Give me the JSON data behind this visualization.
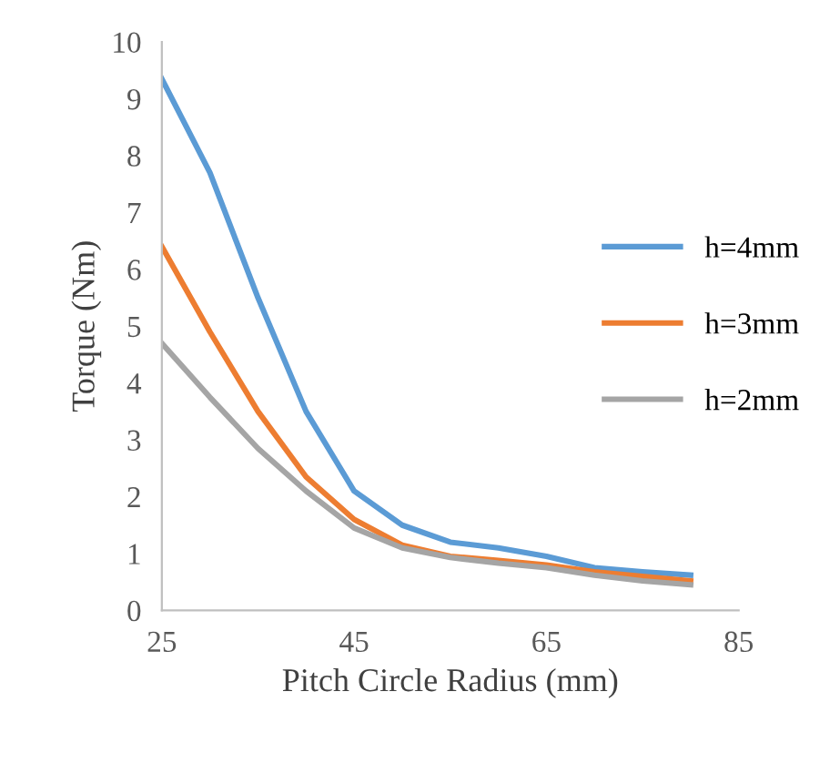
{
  "chart_data": {
    "type": "line",
    "xlabel": "Pitch Circle Radius (mm)",
    "ylabel": "Torque (Nm)",
    "x": [
      25,
      30,
      35,
      40,
      45,
      50,
      55,
      60,
      65,
      70,
      75,
      80
    ],
    "series": [
      {
        "name": "h=4mm",
        "color": "#5b9bd5",
        "values": [
          9.35,
          7.7,
          5.5,
          3.5,
          2.1,
          1.5,
          1.2,
          1.1,
          0.95,
          0.75,
          0.68,
          0.62
        ]
      },
      {
        "name": "h=3mm",
        "color": "#ed7d31",
        "values": [
          6.4,
          4.9,
          3.5,
          2.35,
          1.6,
          1.15,
          0.95,
          0.88,
          0.8,
          0.68,
          0.6,
          0.52
        ]
      },
      {
        "name": "h=2mm",
        "color": "#a5a5a5",
        "values": [
          4.7,
          3.75,
          2.85,
          2.1,
          1.45,
          1.1,
          0.93,
          0.83,
          0.75,
          0.62,
          0.52,
          0.45
        ]
      }
    ],
    "xlim": [
      25,
      85
    ],
    "xticks": [
      25,
      45,
      65,
      85
    ],
    "ylim": [
      0,
      10
    ],
    "yticks": [
      0,
      1,
      2,
      3,
      4,
      5,
      6,
      7,
      8,
      9,
      10
    ],
    "grid": false,
    "legend": "right",
    "marker": "none",
    "line_style": "solid"
  }
}
